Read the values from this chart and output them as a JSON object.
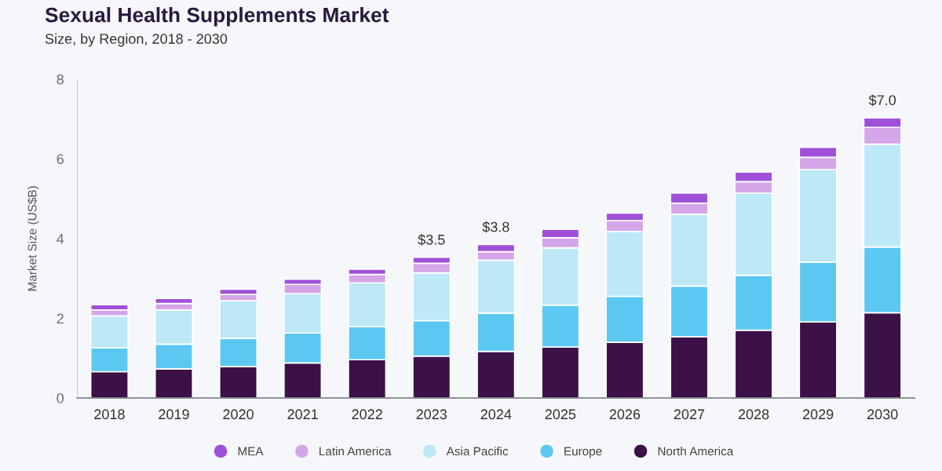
{
  "chart_data": {
    "type": "bar",
    "title": "Sexual Health Supplements Market",
    "subtitle": "Size, by Region, 2018 - 2030",
    "ylabel": "Market Size (US$B)",
    "categories": [
      "2018",
      "2019",
      "2020",
      "2021",
      "2022",
      "2023",
      "2024",
      "2025",
      "2026",
      "2027",
      "2028",
      "2029",
      "2030"
    ],
    "stacked": true,
    "series": [
      {
        "name": "North America",
        "color": "#3b1148",
        "values": [
          0.66,
          0.73,
          0.79,
          0.88,
          0.96,
          1.05,
          1.17,
          1.28,
          1.4,
          1.54,
          1.7,
          1.91,
          2.14
        ]
      },
      {
        "name": "Europe",
        "color": "#5bc8f2",
        "values": [
          0.6,
          0.62,
          0.71,
          0.75,
          0.83,
          0.89,
          0.96,
          1.05,
          1.15,
          1.27,
          1.38,
          1.5,
          1.65
        ]
      },
      {
        "name": "Asia Pacific",
        "color": "#bde8f8",
        "values": [
          0.8,
          0.86,
          0.94,
          0.99,
          1.1,
          1.2,
          1.33,
          1.44,
          1.63,
          1.8,
          2.06,
          2.32,
          2.58
        ]
      },
      {
        "name": "Latin America",
        "color": "#d4a5e8",
        "values": [
          0.15,
          0.16,
          0.16,
          0.23,
          0.21,
          0.24,
          0.21,
          0.25,
          0.27,
          0.28,
          0.29,
          0.31,
          0.42
        ]
      },
      {
        "name": "MEA",
        "color": "#a050d8",
        "values": [
          0.13,
          0.13,
          0.13,
          0.13,
          0.13,
          0.15,
          0.18,
          0.21,
          0.19,
          0.25,
          0.24,
          0.25,
          0.24
        ]
      }
    ],
    "totals": [
      null,
      null,
      null,
      null,
      null,
      "$3.5",
      "$3.8",
      null,
      null,
      null,
      null,
      null,
      "$7.0"
    ],
    "ylim": [
      0,
      8
    ],
    "yticks": [
      0,
      2,
      4,
      6,
      8
    ],
    "legend": "bottom"
  }
}
